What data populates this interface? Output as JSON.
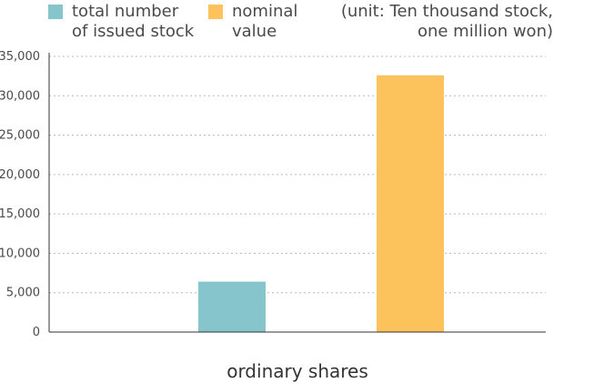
{
  "chart_data": {
    "type": "bar",
    "categories": [
      "ordinary shares"
    ],
    "series": [
      {
        "name": "total number\nof issued stock",
        "values": [
          6400
        ],
        "color": "#86c5cc"
      },
      {
        "name": "nominal\nvalue",
        "values": [
          32600
        ],
        "color": "#fcc35d"
      }
    ],
    "xlabel": "ordinary shares",
    "ylabel": "",
    "ylim": [
      0,
      35000
    ],
    "yticks": [
      0,
      5000,
      10000,
      15000,
      20000,
      25000,
      30000,
      35000
    ],
    "ytick_labels": [
      "0",
      "5,000",
      "10,000",
      "15,000",
      "20,000",
      "25,000",
      "30,000",
      "35,000"
    ],
    "grid": true,
    "legend_position": "top-left",
    "unit_note": "(unit: Ten thousand stock,\none million won)"
  }
}
